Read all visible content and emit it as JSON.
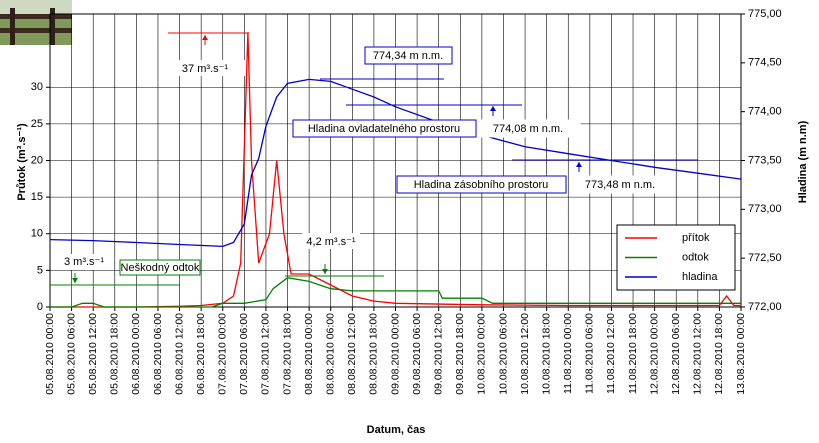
{
  "chart_data": {
    "type": "line",
    "y_label": "Průtok (m³.s⁻¹)",
    "y2_label": "Hladina (m n.m)",
    "x_label": "Datum, čas",
    "xticks": [
      "05.08.2010 00:00",
      "05.08.2010 06:00",
      "05.08.2010 12:00",
      "05.08.2010 18:00",
      "06.08.2010 00:00",
      "06.08.2010 06:00",
      "06.08.2010 12:00",
      "06.08.2010 18:00",
      "07.08.2010 00:00",
      "07.08.2010 06:00",
      "07.08.2010 12:00",
      "07.08.2010 18:00",
      "08.08.2010 00:00",
      "08.08.2010 06:00",
      "08.08.2010 12:00",
      "08.08.2010 18:00",
      "09.08.2010 00:00",
      "09.08.2010 06:00",
      "09.08.2010 12:00",
      "09.08.2010 18:00",
      "10.08.2010 00:00",
      "10.08.2010 06:00",
      "10.08.2010 12:00",
      "10.08.2010 18:00",
      "11.08.2010 00:00",
      "11.08.2010 06:00",
      "11.08.2010 12:00",
      "11.08.2010 18:00",
      "12.08.2010 00:00",
      "12.08.2010 06:00",
      "12.08.2010 12:00",
      "12.08.2010 18:00",
      "13.08.2010 00:00"
    ],
    "ylim": [
      0,
      40
    ],
    "yticks": [
      0,
      5,
      10,
      15,
      20,
      25,
      30
    ],
    "y2lim": [
      772,
      775
    ],
    "y2ticks": [
      {
        "value": 772,
        "label": "772,00"
      },
      {
        "value": 772.5,
        "label": "772,50"
      },
      {
        "value": 773,
        "label": "773,00"
      },
      {
        "value": 773.5,
        "label": "773,50"
      },
      {
        "value": 774,
        "label": "774,00"
      },
      {
        "value": 774.5,
        "label": "774,50"
      },
      {
        "value": 775,
        "label": "775,00"
      }
    ],
    "grid": true,
    "legend": "lower right",
    "series": [
      {
        "name": "přítok",
        "color": "#ff0000",
        "x": [
          "05.08.2010 00:00",
          "06.08.2010 00:00",
          "06.08.2010 12:00",
          "06.08.2010 18:00",
          "07.08.2010 00:00",
          "07.08.2010 03:00",
          "07.08.2010 05:00",
          "07.08.2010 07:00",
          "07.08.2010 08:00",
          "07.08.2010 10:00",
          "07.08.2010 13:00",
          "07.08.2010 15:00",
          "07.08.2010 17:00",
          "07.08.2010 19:00",
          "08.08.2010 00:00",
          "08.08.2010 06:00",
          "08.08.2010 12:00",
          "08.08.2010 18:00",
          "09.08.2010 00:00",
          "10.08.2010 00:00",
          "11.08.2010 00:00",
          "12.08.2010 18:00",
          "12.08.2010 20:00",
          "12.08.2010 22:00",
          "13.08.2010 00:00"
        ],
        "values": [
          0,
          0,
          0.1,
          0.2,
          0.5,
          1.5,
          6,
          37.5,
          20,
          6,
          10,
          20,
          10,
          4.5,
          4.5,
          3,
          1.5,
          0.8,
          0.5,
          0.3,
          0.2,
          0.2,
          1.5,
          0.2,
          0.2
        ]
      },
      {
        "name": "odtok",
        "color": "#008000",
        "x": [
          "05.08.2010 00:00",
          "05.08.2010 06:00",
          "05.08.2010 09:00",
          "05.08.2010 12:00",
          "05.08.2010 15:00",
          "06.08.2010 21:00",
          "07.08.2010 00:00",
          "07.08.2010 06:00",
          "07.08.2010 12:00",
          "07.08.2010 14:00",
          "07.08.2010 18:00",
          "08.08.2010 00:00",
          "08.08.2010 06:00",
          "08.08.2010 12:00",
          "09.08.2010 12:00",
          "09.08.2010 13:00",
          "10.08.2010 00:00",
          "10.08.2010 03:00",
          "13.08.2010 00:00"
        ],
        "values": [
          0,
          0,
          0.5,
          0.5,
          0,
          0,
          0.5,
          0.5,
          1,
          2.5,
          4,
          3.5,
          2.5,
          2.2,
          2.2,
          1.2,
          1.2,
          0.5,
          0.5
        ]
      },
      {
        "name": "hladina",
        "color": "#0000cc",
        "axis": "y2",
        "x": [
          "05.08.2010 00:00",
          "05.08.2010 12:00",
          "06.08.2010 00:00",
          "06.08.2010 12:00",
          "07.08.2010 00:00",
          "07.08.2010 03:00",
          "07.08.2010 06:00",
          "07.08.2010 08:00",
          "07.08.2010 10:00",
          "07.08.2010 12:00",
          "07.08.2010 15:00",
          "07.08.2010 18:00",
          "08.08.2010 00:00",
          "08.08.2010 06:00",
          "08.08.2010 12:00",
          "08.08.2010 18:00",
          "09.08.2010 00:00",
          "09.08.2010 12:00",
          "10.08.2010 00:00",
          "10.08.2010 12:00",
          "11.08.2010 00:00",
          "11.08.2010 12:00",
          "12.08.2010 00:00",
          "12.08.2010 12:00",
          "13.08.2010 00:00"
        ],
        "values": [
          772.69,
          772.68,
          772.66,
          772.64,
          772.62,
          772.66,
          772.85,
          773.35,
          773.52,
          773.85,
          774.15,
          774.29,
          774.33,
          774.31,
          774.23,
          774.15,
          774.05,
          773.89,
          773.76,
          773.64,
          773.57,
          773.5,
          773.43,
          773.37,
          773.31
        ]
      }
    ],
    "annotations": [
      "37 m³.s⁻¹",
      "774,34 m n.m.",
      "774,08 m n.m.",
      "773,48 m n.m.",
      "Hladina ovladatelného prostoru",
      "Hladina zásobního prostoru",
      "3 m³.s⁻¹",
      "Neškodný odtok",
      "4,2 m³.s⁻¹"
    ]
  }
}
